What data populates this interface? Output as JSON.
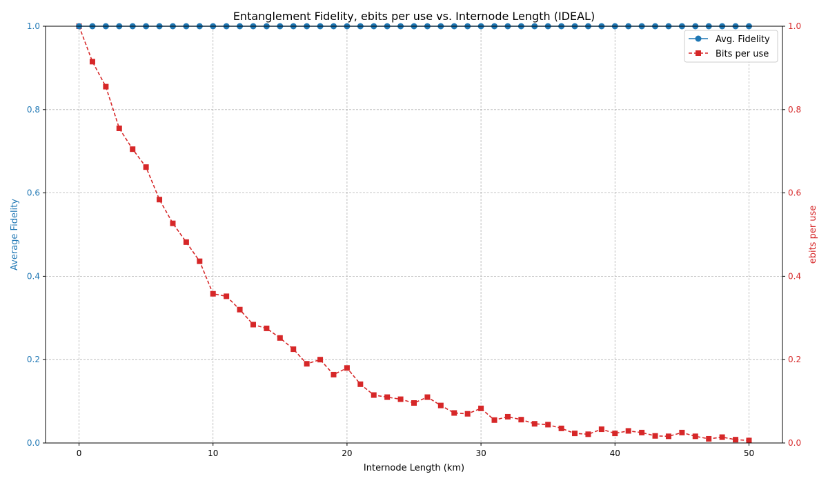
{
  "chart_data": {
    "type": "line",
    "title": "Entanglement Fidelity, ebits per use vs. Internode Length (IDEAL)",
    "xlabel": "Internode Length (km)",
    "ylabel_left": "Average Fidelity",
    "ylabel_right": "ebits per use",
    "xlim": [
      -2.5,
      52.5
    ],
    "ylim_left": [
      0,
      1
    ],
    "ylim_right": [
      0,
      1
    ],
    "xticks": [
      0,
      10,
      20,
      30,
      40,
      50
    ],
    "yticks_left": [
      0.0,
      0.2,
      0.4,
      0.6,
      0.8,
      1.0
    ],
    "yticks_right": [
      0.0,
      0.2,
      0.4,
      0.6,
      0.8,
      1.0
    ],
    "grid": true,
    "legend_position": "top-right",
    "x": [
      0,
      1,
      2,
      3,
      4,
      5,
      6,
      7,
      8,
      9,
      10,
      11,
      12,
      13,
      14,
      15,
      16,
      17,
      18,
      19,
      20,
      21,
      22,
      23,
      24,
      25,
      26,
      27,
      28,
      29,
      30,
      31,
      32,
      33,
      34,
      35,
      36,
      37,
      38,
      39,
      40,
      41,
      42,
      43,
      44,
      45,
      46,
      47,
      48,
      49,
      50
    ],
    "series": [
      {
        "name": "Avg. Fidelity",
        "axis": "left",
        "color": "#1f77b4",
        "marker": "circle",
        "linestyle": "solid",
        "values": [
          1,
          1,
          1,
          1,
          1,
          1,
          1,
          1,
          1,
          1,
          1,
          1,
          1,
          1,
          1,
          1,
          1,
          1,
          1,
          1,
          1,
          1,
          1,
          1,
          1,
          1,
          1,
          1,
          1,
          1,
          1,
          1,
          1,
          1,
          1,
          1,
          1,
          1,
          1,
          1,
          1,
          1,
          1,
          1,
          1,
          1,
          1,
          1,
          1,
          1,
          1
        ]
      },
      {
        "name": "Bits per use",
        "axis": "right",
        "color": "#d62728",
        "marker": "square",
        "linestyle": "dashed",
        "values": [
          1.0,
          0.915,
          0.855,
          0.755,
          0.705,
          0.662,
          0.584,
          0.527,
          0.482,
          0.436,
          0.358,
          0.352,
          0.32,
          0.284,
          0.275,
          0.252,
          0.225,
          0.19,
          0.2,
          0.164,
          0.18,
          0.141,
          0.115,
          0.11,
          0.105,
          0.096,
          0.11,
          0.09,
          0.072,
          0.07,
          0.083,
          0.055,
          0.063,
          0.056,
          0.046,
          0.044,
          0.035,
          0.023,
          0.021,
          0.033,
          0.023,
          0.029,
          0.025,
          0.017,
          0.016,
          0.025,
          0.016,
          0.01,
          0.014,
          0.008,
          0.006
        ]
      }
    ]
  }
}
